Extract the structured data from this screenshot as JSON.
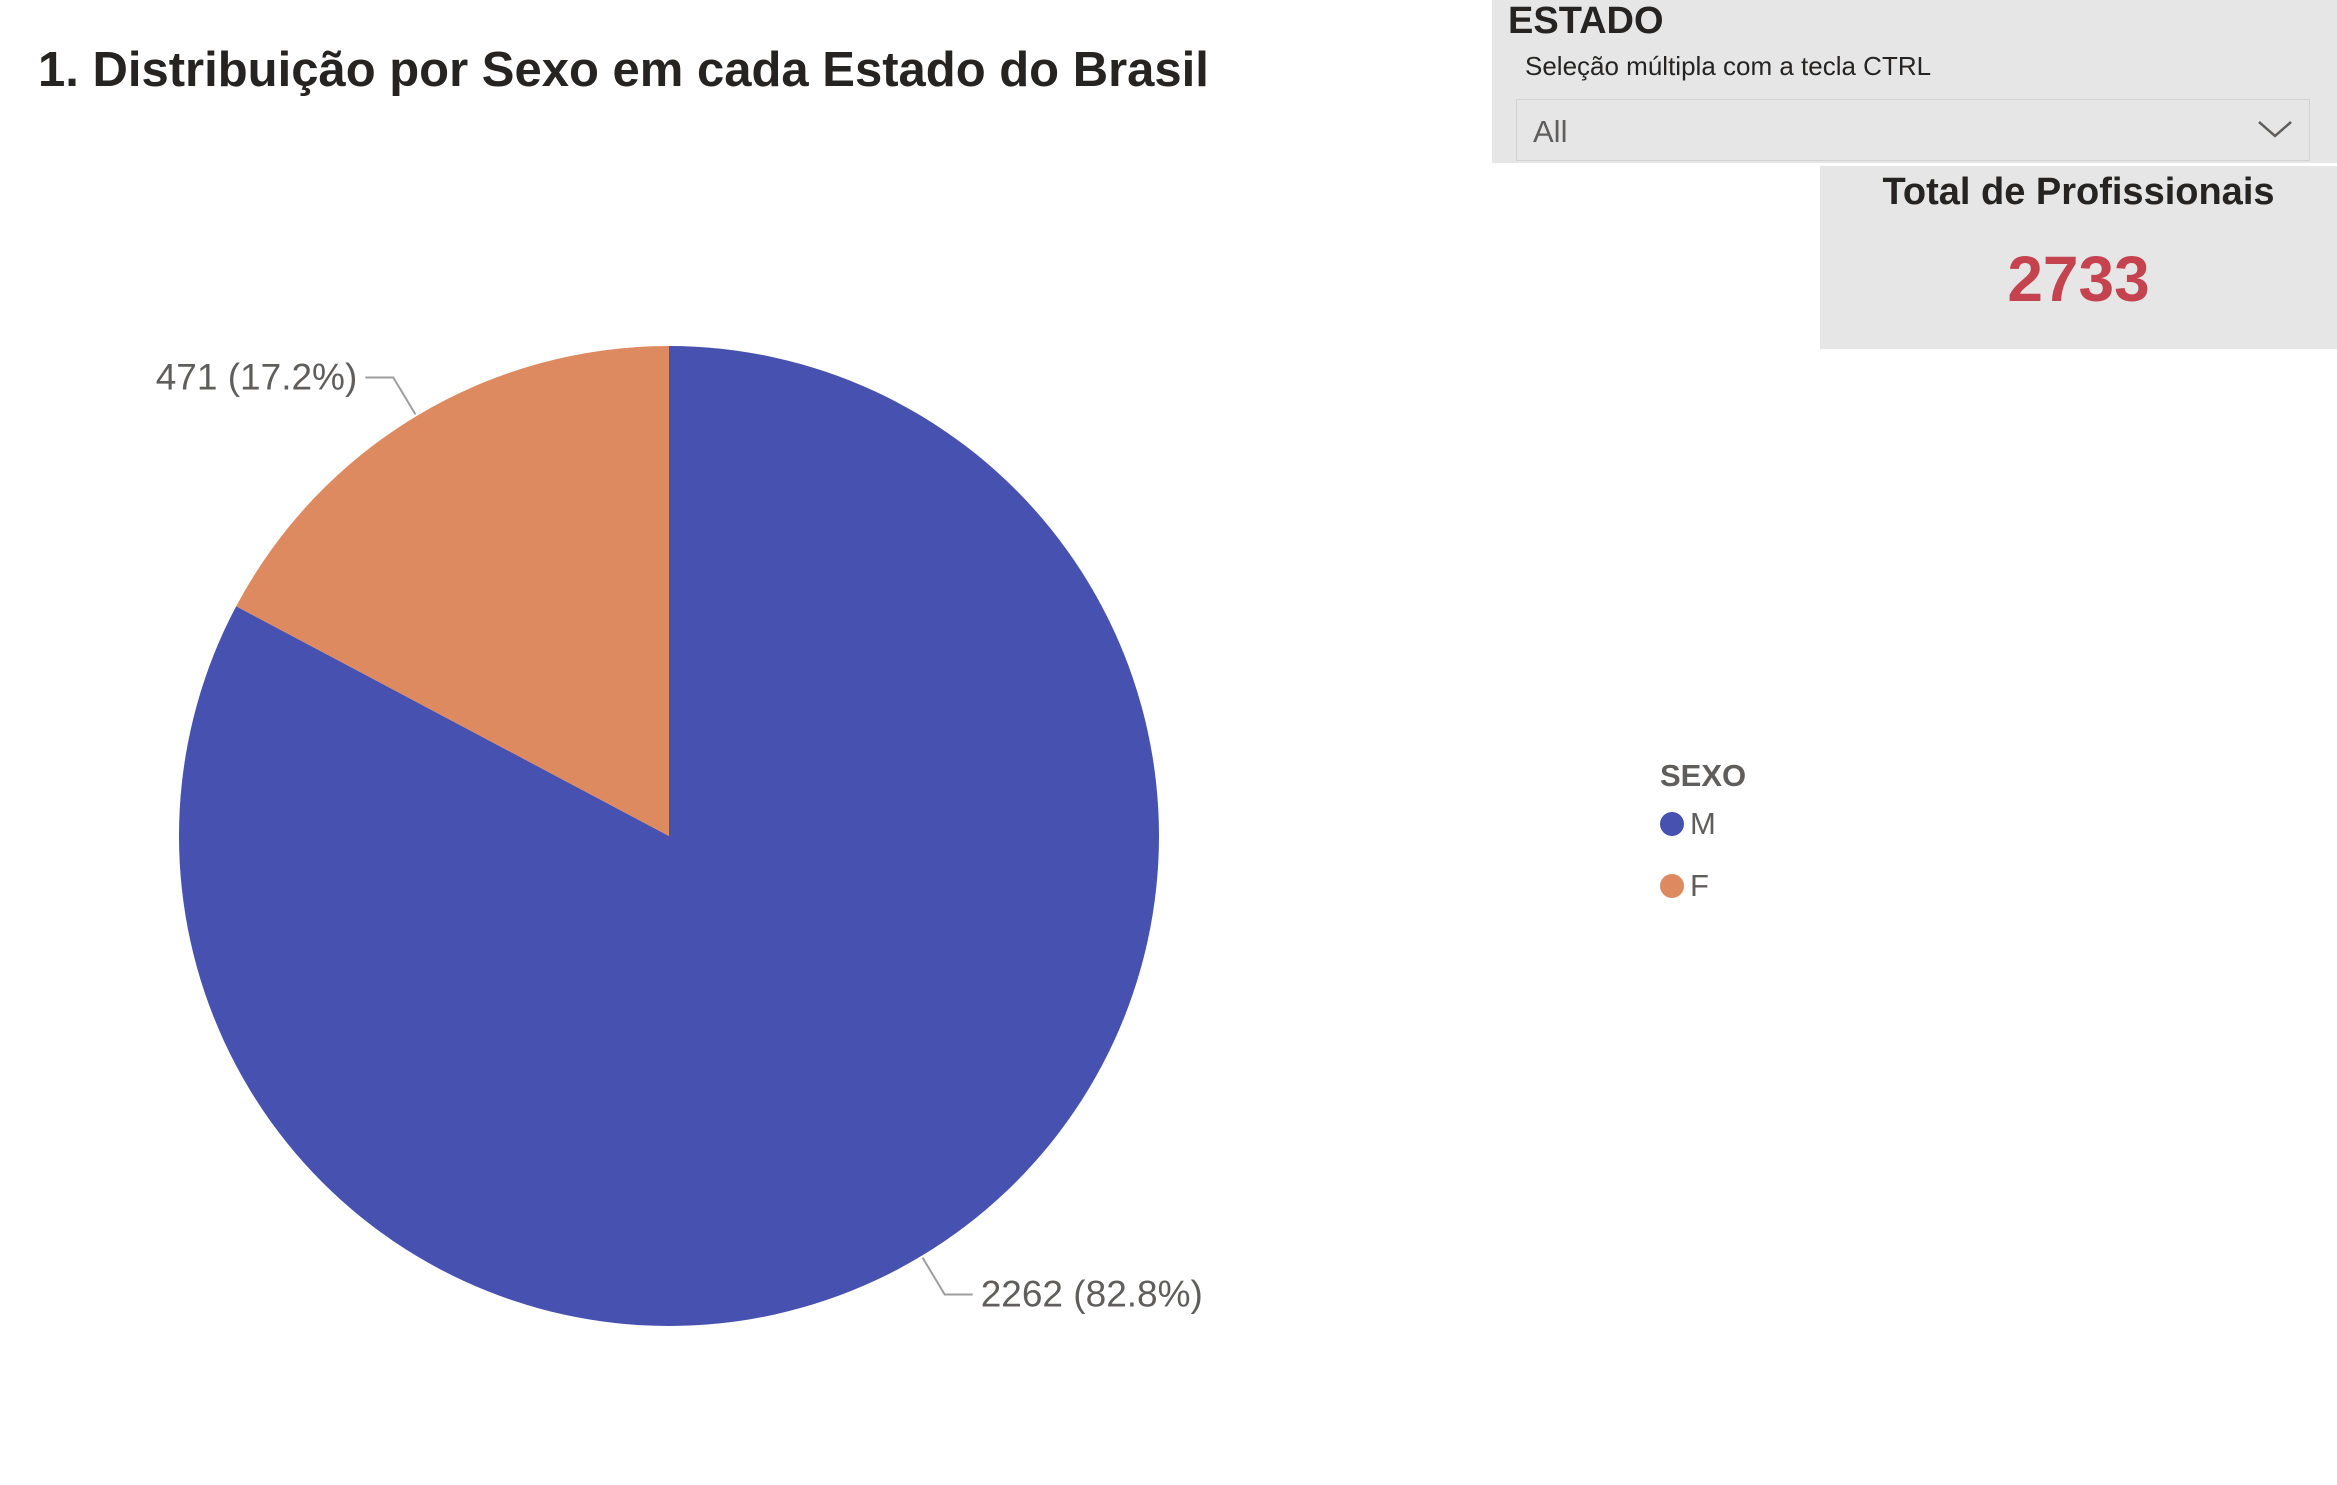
{
  "title": "1. Distribuição por Sexo em cada Estado do Brasil",
  "slicer": {
    "header": "ESTADO",
    "subtitle": "Seleção múltipla com a tecla CTRL",
    "selected_value": "All",
    "chevron_icon": "chevron-down-icon"
  },
  "card": {
    "title": "Total de Profissionais",
    "value": "2733",
    "value_color": "#c4434f"
  },
  "chart_data": {
    "type": "pie",
    "title": "1. Distribuição por Sexo em cada Estado do Brasil",
    "legend_title": "SEXO",
    "legend_position": "right",
    "slices": [
      {
        "label": "M",
        "value": 2262,
        "percent": 82.8,
        "data_label": "2262 (82.8%)",
        "color": "#4751b0"
      },
      {
        "label": "F",
        "value": 471,
        "percent": 17.2,
        "data_label": "471 (17.2%)",
        "color": "#de8a61"
      }
    ]
  }
}
